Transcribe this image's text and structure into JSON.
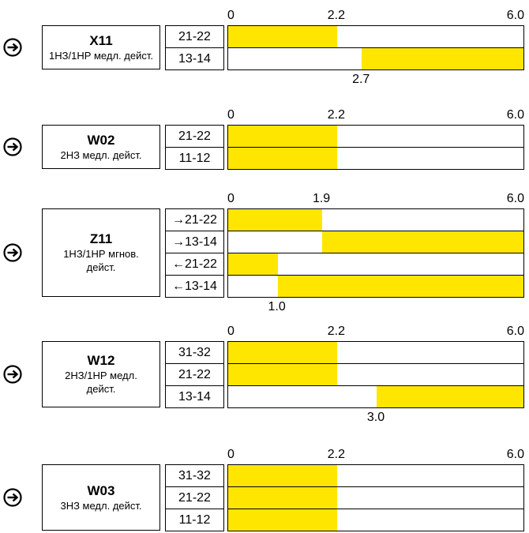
{
  "scale_min": 0,
  "scale_max": 6.0,
  "colors": {
    "fill": "#ffe600",
    "border": "#000000"
  },
  "icon": "arrow-right-circle-icon",
  "groups": [
    {
      "code": "X11",
      "desc_lines": [
        "1НЗ/1НР медл. дейст."
      ],
      "top_labels": [
        "0",
        "2.2",
        "6.0"
      ],
      "top_values": [
        0,
        2.2,
        6.0
      ],
      "bottom_label": "2.7",
      "bottom_value": 2.7,
      "rows": [
        {
          "contact": "21-22",
          "start": 0,
          "end": 2.2
        },
        {
          "contact": "13-14",
          "start": 2.7,
          "end": 6.0
        }
      ]
    },
    {
      "code": "W02",
      "desc_lines": [
        "2НЗ медл. дейст."
      ],
      "top_labels": [
        "0",
        "2.2",
        "6.0"
      ],
      "top_values": [
        0,
        2.2,
        6.0
      ],
      "bottom_label": "",
      "bottom_value": null,
      "rows": [
        {
          "contact": "21-22",
          "start": 0,
          "end": 2.2
        },
        {
          "contact": "11-12",
          "start": 0,
          "end": 2.2
        }
      ]
    },
    {
      "code": "Z11",
      "desc_lines": [
        "1НЗ/1НР мгнов.",
        "дейст."
      ],
      "top_labels": [
        "0",
        "1.9",
        "6.0"
      ],
      "top_values": [
        0,
        1.9,
        6.0
      ],
      "bottom_label": "1.0",
      "bottom_value": 1.0,
      "rows": [
        {
          "contact": "→21-22",
          "start": 0,
          "end": 1.9
        },
        {
          "contact": "→13-14",
          "start": 1.9,
          "end": 6.0
        },
        {
          "contact": "←21-22",
          "start": 0,
          "end": 1.0
        },
        {
          "contact": "←13-14",
          "start": 1.0,
          "end": 6.0
        }
      ]
    },
    {
      "code": "W12",
      "desc_lines": [
        "2НЗ/1НР медл.",
        "дейст."
      ],
      "top_labels": [
        "0",
        "2.2",
        "6.0"
      ],
      "top_values": [
        0,
        2.2,
        6.0
      ],
      "bottom_label": "3.0",
      "bottom_value": 3.0,
      "rows": [
        {
          "contact": "31-32",
          "start": 0,
          "end": 2.2
        },
        {
          "contact": "21-22",
          "start": 0,
          "end": 2.2
        },
        {
          "contact": "13-14",
          "start": 3.0,
          "end": 6.0
        }
      ]
    },
    {
      "code": "W03",
      "desc_lines": [
        "3НЗ медл. дейст."
      ],
      "top_labels": [
        "0",
        "2.2",
        "6.0"
      ],
      "top_values": [
        0,
        2.2,
        6.0
      ],
      "bottom_label": "",
      "bottom_value": null,
      "rows": [
        {
          "contact": "31-32",
          "start": 0,
          "end": 2.2
        },
        {
          "contact": "21-22",
          "start": 0,
          "end": 2.2
        },
        {
          "contact": "11-12",
          "start": 0,
          "end": 2.2
        }
      ]
    }
  ]
}
